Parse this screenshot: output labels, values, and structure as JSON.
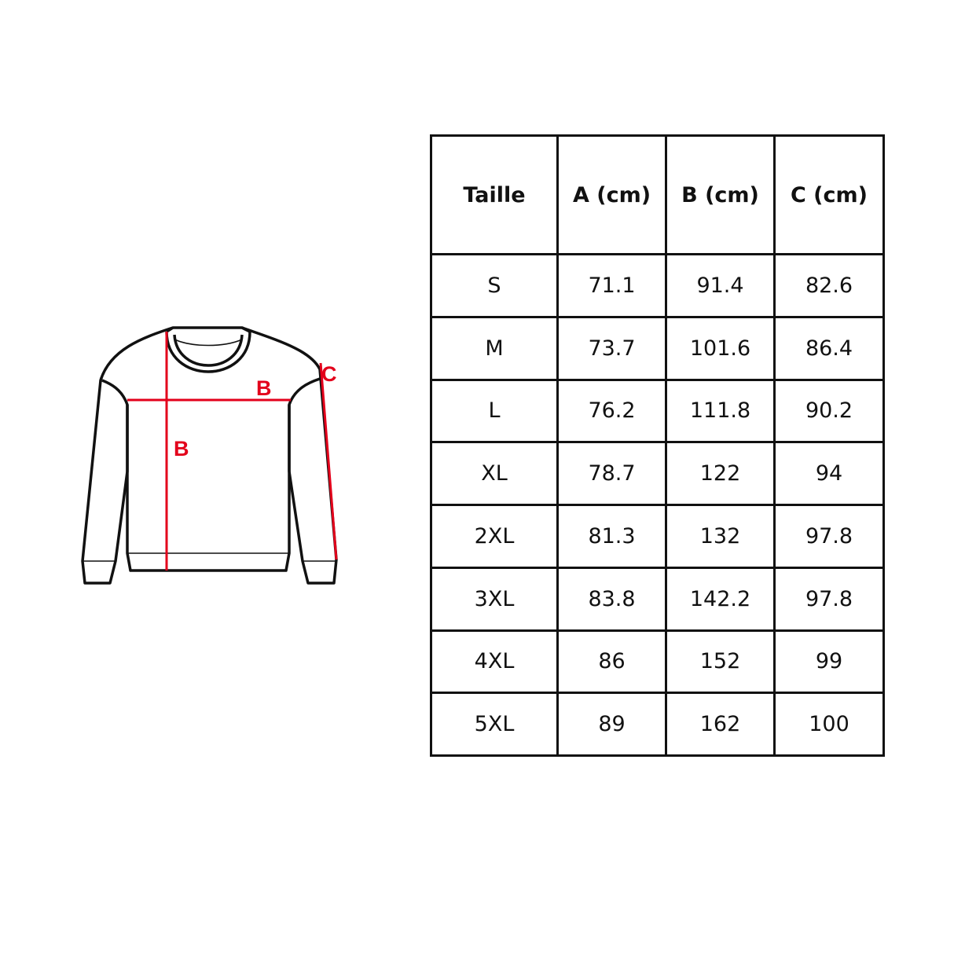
{
  "diagram": {
    "labels": {
      "width": "B",
      "length": "B",
      "sleeve": "C"
    },
    "accent_color": "#e3001b"
  },
  "table": {
    "headers": [
      "Taille",
      "A (cm)",
      "B (cm)",
      "C (cm)"
    ],
    "rows": [
      [
        "S",
        "71.1",
        "91.4",
        "82.6"
      ],
      [
        "M",
        "73.7",
        "101.6",
        "86.4"
      ],
      [
        "L",
        "76.2",
        "111.8",
        "90.2"
      ],
      [
        "XL",
        "78.7",
        "122",
        "94"
      ],
      [
        "2XL",
        "81.3",
        "132",
        "97.8"
      ],
      [
        "3XL",
        "83.8",
        "142.2",
        "97.8"
      ],
      [
        "4XL",
        "86",
        "152",
        "99"
      ],
      [
        "5XL",
        "89",
        "162",
        "100"
      ]
    ]
  }
}
